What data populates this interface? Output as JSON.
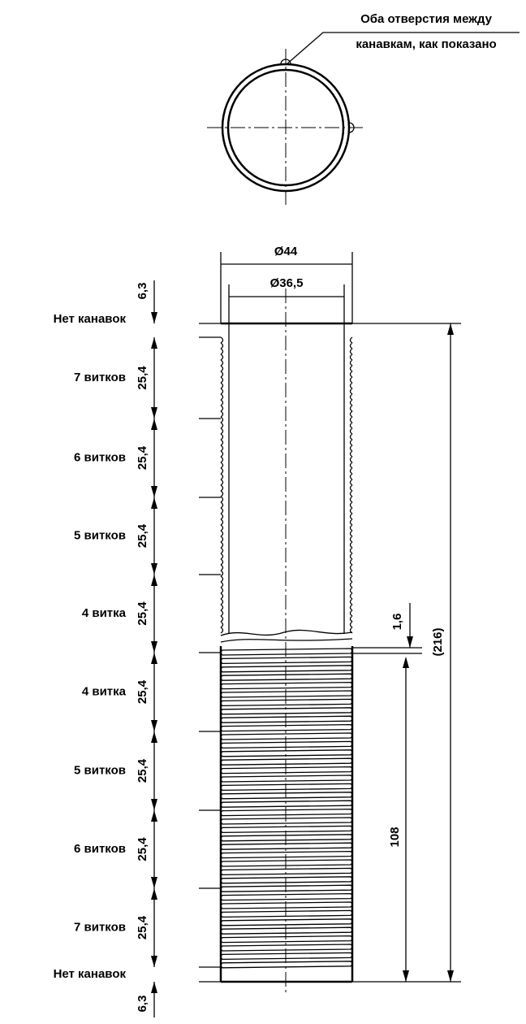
{
  "annotation": {
    "lines": [
      "Оба отверстия между",
      "канавкам, как показано"
    ]
  },
  "dimensions": {
    "outer_diameter": "Ø44",
    "inner_diameter": "Ø36,5",
    "top_margin": "6,3",
    "bottom_margin": "6,3",
    "gap": "1,6",
    "total": "(216)",
    "lower_length": "108"
  },
  "sections": [
    {
      "label": "Нет канавок"
    },
    {
      "label": "7 витков",
      "length": "25,4"
    },
    {
      "label": "6 витков",
      "length": "25,4"
    },
    {
      "label": "5 витков",
      "length": "25,4"
    },
    {
      "label": "4 витка",
      "length": "25,4"
    },
    {
      "label": "4 витка",
      "length": "25,4"
    },
    {
      "label": "5 витков",
      "length": "25,4"
    },
    {
      "label": "6 витков",
      "length": "25,4"
    },
    {
      "label": "7 витков",
      "length": "25,4"
    },
    {
      "label": "Нет канавок"
    }
  ]
}
